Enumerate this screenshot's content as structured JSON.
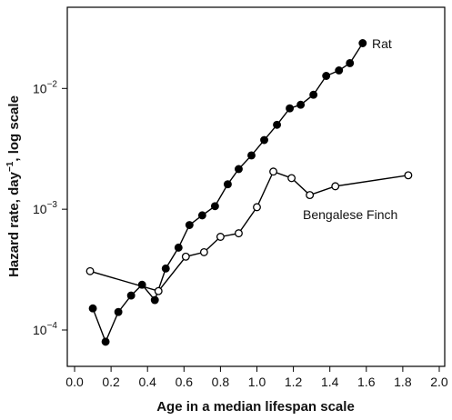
{
  "chart_data": {
    "type": "line",
    "log_y": true,
    "xlabel": "Age in a median lifespan scale",
    "ylabel_parts": [
      "Hazard rate, day",
      "−1",
      ", log scale"
    ],
    "xlim": [
      -0.04,
      2.03
    ],
    "ylim": [
      5e-05,
      0.047
    ],
    "xticks": [
      {
        "value": 0,
        "label": "0.0"
      },
      {
        "value": 0.2,
        "label": "0.2"
      },
      {
        "value": 0.4,
        "label": "0.4"
      },
      {
        "value": 0.6,
        "label": "0.6"
      },
      {
        "value": 0.8,
        "label": "0.8"
      },
      {
        "value": 1,
        "label": "1.0"
      },
      {
        "value": 1.2,
        "label": "1.2"
      },
      {
        "value": 1.4,
        "label": "1.4"
      },
      {
        "value": 1.6,
        "label": "1.6"
      },
      {
        "value": 1.8,
        "label": "1.8"
      },
      {
        "value": 2,
        "label": "2.0"
      }
    ],
    "yticks": [
      {
        "value": 0.0001,
        "label": "10",
        "exponent": "−4"
      },
      {
        "value": 0.001,
        "label": "10",
        "exponent": "−3"
      },
      {
        "value": 0.01,
        "label": "10",
        "exponent": "−2"
      }
    ],
    "series": [
      {
        "name": "Rat",
        "color": "#000000",
        "marker": "filled",
        "x": [
          0.1,
          0.17,
          0.24,
          0.31,
          0.37,
          0.44,
          0.5,
          0.57,
          0.63,
          0.7,
          0.77,
          0.84,
          0.9,
          0.97,
          1.04,
          1.11,
          1.18,
          1.24,
          1.31,
          1.38,
          1.45,
          1.51,
          1.58
        ],
        "values": [
          0.000151,
          8e-05,
          0.000141,
          0.000193,
          0.000237,
          0.000177,
          0.000323,
          0.000481,
          0.00074,
          0.00089,
          0.00106,
          0.00161,
          0.00215,
          0.00279,
          0.00374,
          0.005,
          0.00684,
          0.00733,
          0.00887,
          0.0127,
          0.0141,
          0.0162,
          0.0237
        ]
      },
      {
        "name": "Bengalese Finch",
        "color": "#000000",
        "marker": "open",
        "x": [
          0.085,
          0.46,
          0.61,
          0.71,
          0.8,
          0.9,
          1.0,
          1.09,
          1.19,
          1.29,
          1.43,
          1.83
        ],
        "values": [
          0.000307,
          0.00021,
          0.000405,
          0.000441,
          0.000591,
          0.000632,
          0.00104,
          0.00205,
          0.00181,
          0.00131,
          0.00155,
          0.00191
        ]
      }
    ]
  }
}
